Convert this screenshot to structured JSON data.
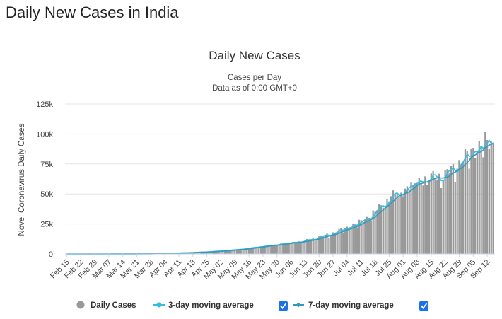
{
  "page": {
    "title": "Daily New Cases in India"
  },
  "chart_data": {
    "type": "bar",
    "title": "Daily New Cases",
    "subtitle": [
      "Cases per Day",
      "Data as of 0:00 GMT+0"
    ],
    "ylabel": "Novel Coronavirus Daily Cases",
    "ylim": [
      0,
      125000
    ],
    "yticks": [
      0,
      25000,
      50000,
      75000,
      100000,
      125000
    ],
    "ytick_labels": [
      "0",
      "25k",
      "50k",
      "75k",
      "100k",
      "125k"
    ],
    "x_start": "Feb 15",
    "x_ticks": [
      "Feb 15",
      "Feb 22",
      "Feb 29",
      "Mar 07",
      "Mar 14",
      "Mar 21",
      "Mar 28",
      "Apr 04",
      "Apr 11",
      "Apr 18",
      "Apr 25",
      "May 02",
      "May 09",
      "May 16",
      "May 23",
      "May 30",
      "Jun 06",
      "Jun 13",
      "Jun 20",
      "Jun 27",
      "Jul 04",
      "Jul 11",
      "Jul 18",
      "Jul 25",
      "Aug 01",
      "Aug 08",
      "Aug 15",
      "Aug 22",
      "Aug 29",
      "Sep 05",
      "Sep 12"
    ],
    "weekly_values": [
      0,
      0,
      2,
      10,
      30,
      80,
      150,
      500,
      800,
      1200,
      1800,
      2500,
      3500,
      4800,
      6500,
      8000,
      9500,
      11000,
      14000,
      17500,
      22000,
      27000,
      35000,
      47000,
      53000,
      61000,
      64000,
      66000,
      76000,
      87000,
      94000
    ],
    "series": [
      {
        "name": "Daily Cases",
        "color": "#999999"
      },
      {
        "name": "3-day moving average",
        "color": "#33bbe8"
      },
      {
        "name": "7-day moving average",
        "color": "#3399bb"
      }
    ],
    "grid": true,
    "legend": "bottom"
  },
  "legend": {
    "items": [
      {
        "label": "Daily Cases",
        "icon": "circle-marker-icon",
        "color": "#999999"
      },
      {
        "label": "3-day moving average",
        "icon": "line-marker-icon",
        "color": "#33bbe8",
        "checked": true
      },
      {
        "label": "7-day moving average",
        "icon": "line-marker-icon",
        "color": "#3399bb",
        "checked": true
      }
    ]
  }
}
